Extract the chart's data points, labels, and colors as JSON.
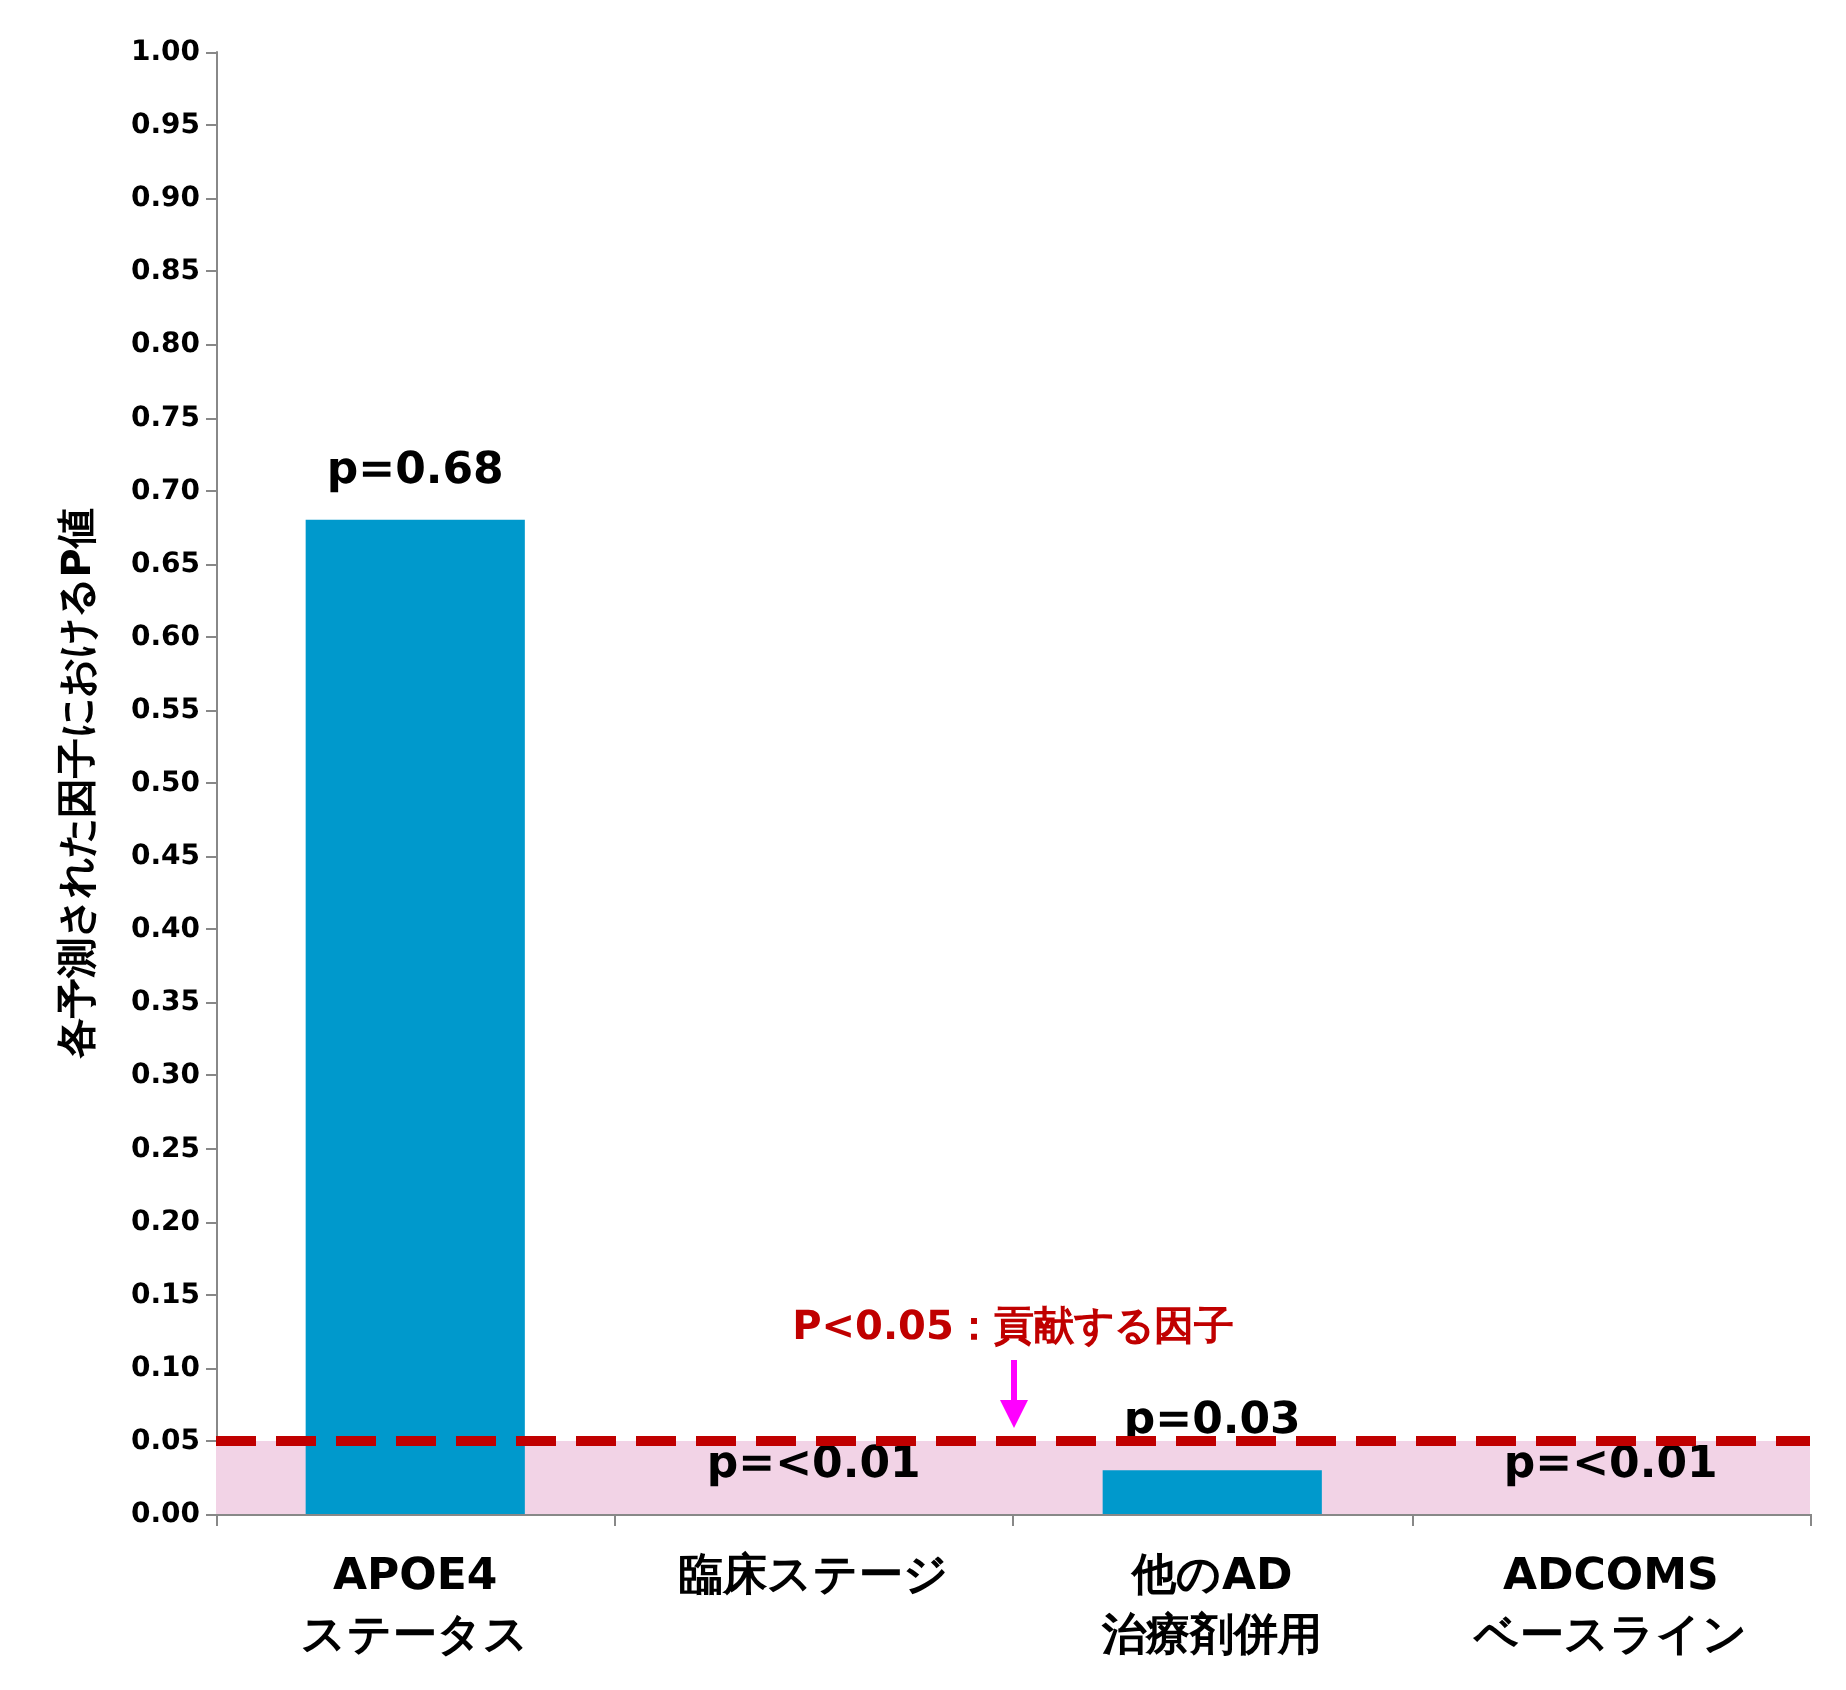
{
  "chart_data": {
    "type": "bar",
    "ylabel": "各予測された因子におけるP値",
    "categories": [
      "APOE4\nステータス",
      "臨床ステージ",
      "他のAD\n治療剤併用",
      "ADCOMS\nベースライン"
    ],
    "values": [
      0.68,
      0,
      0.03,
      0
    ],
    "value_labels": [
      "p=0.68",
      "p=<0.01",
      "p=0.03",
      "p=<0.01"
    ],
    "color": "#0099cc",
    "ylim": [
      0,
      1
    ],
    "yticks": [
      {
        "value": 0,
        "label": "0.00"
      },
      0.05,
      {
        "value": 0.1,
        "label": "0.10"
      },
      0.15,
      {
        "value": 0.2,
        "label": "0.20"
      },
      0.25,
      {
        "value": 0.3,
        "label": "0.30"
      },
      0.35,
      {
        "value": 0.4,
        "label": "0.40"
      },
      0.45,
      {
        "value": 0.5,
        "label": "0.50"
      },
      0.55,
      {
        "value": 0.6,
        "label": "0.60"
      },
      0.65,
      {
        "value": 0.7,
        "label": "0.70"
      },
      0.75,
      {
        "value": 0.8,
        "label": "0.80"
      },
      0.85,
      {
        "value": 0.9,
        "label": "0.90"
      },
      0.95,
      {
        "value": 1,
        "label": "1.00"
      }
    ],
    "grid": false,
    "ref_lines": [
      {
        "axis": "y",
        "value": 0.05,
        "label": "P<0.05：貢献する因子",
        "color": "#c00000",
        "line_style": "dashed"
      }
    ],
    "bands": [
      {
        "axis": "y",
        "from": 0,
        "to": 0.05,
        "color": "#f2d3e6"
      }
    ]
  }
}
